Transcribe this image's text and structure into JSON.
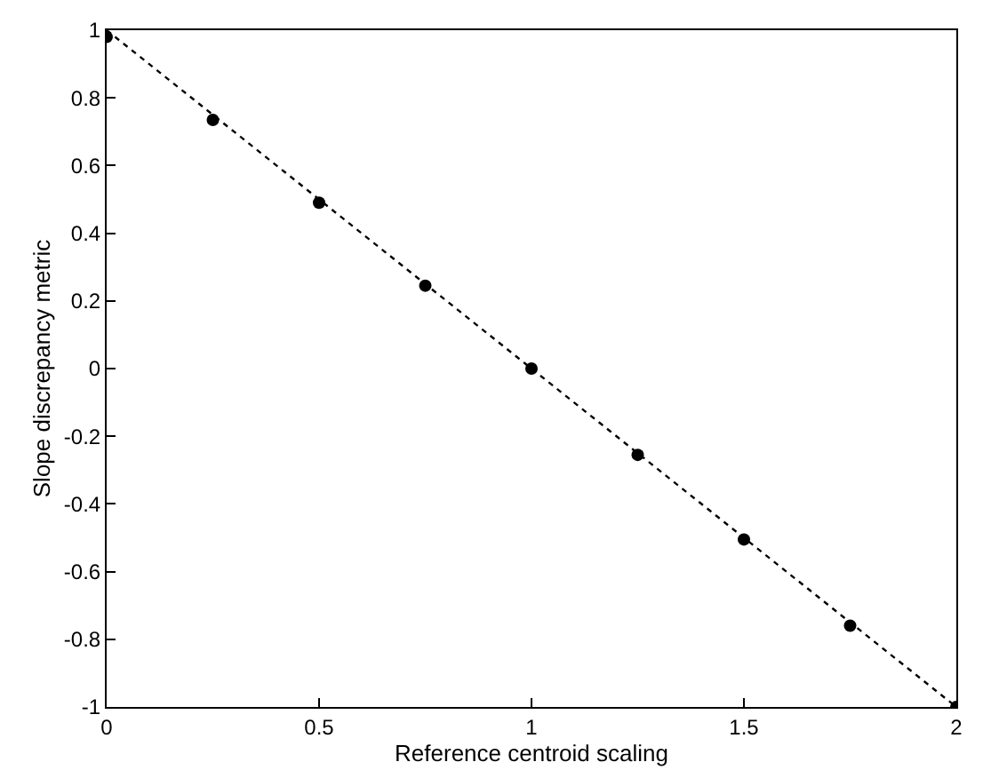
{
  "chart_data": {
    "type": "scatter",
    "xlabel": "Reference centroid scaling",
    "ylabel": "Slope discrepancy metric",
    "xlim": [
      0,
      2
    ],
    "ylim": [
      -1,
      1
    ],
    "xticks": [
      0,
      0.5,
      1,
      1.5,
      2
    ],
    "yticks": [
      -1,
      -0.8,
      -0.6,
      -0.4,
      -0.2,
      0,
      0.2,
      0.4,
      0.6,
      0.8,
      1
    ],
    "series": [
      {
        "type": "line",
        "color": "#000000",
        "x": [
          0,
          2
        ],
        "values": [
          1,
          -1
        ],
        "line_style": "dotted",
        "marker": "none"
      },
      {
        "color": "#000000",
        "x": [
          0,
          0.25,
          0.5,
          0.75,
          1,
          1.25,
          1.5,
          1.75,
          2
        ],
        "values": [
          0.98,
          0.735,
          0.49,
          0.245,
          0,
          -0.255,
          -0.505,
          -0.76,
          -1
        ],
        "marker": "circle"
      }
    ]
  }
}
